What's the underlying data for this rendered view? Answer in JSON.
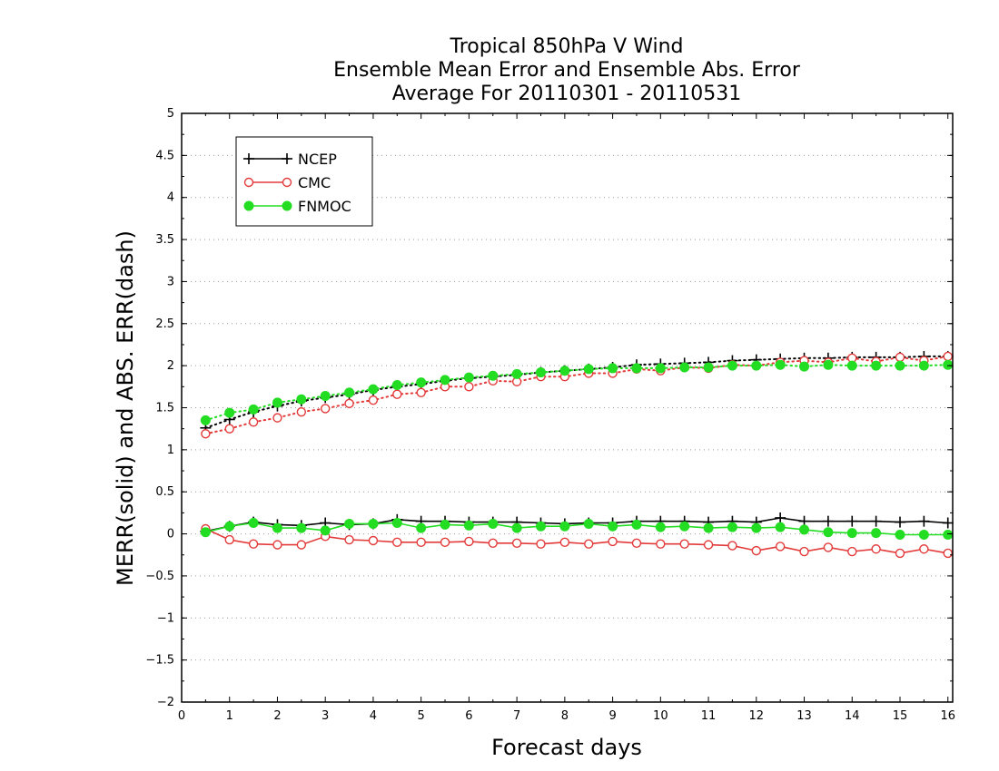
{
  "chart_data": {
    "type": "line",
    "title": [
      "Tropical 850hPa V Wind",
      "Ensemble Mean Error and Ensemble Abs. Error",
      "Average For 20110301 - 20110531"
    ],
    "xlabel": "Forecast days",
    "ylabel": "MERR(solid) and ABS. ERR(dash)",
    "xlim": [
      0,
      16.1
    ],
    "ylim": [
      -2,
      5
    ],
    "xticks": [
      0,
      1,
      2,
      3,
      4,
      5,
      6,
      7,
      8,
      9,
      10,
      11,
      12,
      13,
      14,
      15,
      16
    ],
    "xtick_labels": [
      "0",
      "1",
      "2",
      "3",
      "4",
      "5",
      "6",
      "7",
      "8",
      "9",
      "10",
      "11",
      "12",
      "13",
      "14",
      "15",
      "16"
    ],
    "yticks": [
      -2,
      -1.5,
      -1,
      -0.5,
      0,
      0.5,
      1,
      1.5,
      2,
      2.5,
      3,
      3.5,
      4,
      4.5,
      5
    ],
    "ytick_labels": [
      "−2",
      "−1.5",
      "−1",
      "−0.5",
      "0",
      "0.5",
      "1",
      "1.5",
      "2",
      "2.5",
      "3",
      "3.5",
      "4",
      "4.5",
      "5"
    ],
    "grid": "horizontal dotted",
    "legend_position": "top-left",
    "x": [
      0.5,
      1,
      1.5,
      2,
      2.5,
      3,
      3.5,
      4,
      4.5,
      5,
      5.5,
      6,
      6.5,
      7,
      7.5,
      8,
      8.5,
      9,
      9.5,
      10,
      10.5,
      11,
      11.5,
      12,
      12.5,
      13,
      13.5,
      14,
      14.5,
      15,
      15.5,
      16
    ],
    "series": [
      {
        "name": "NCEP",
        "color": "#000000",
        "marker": "plus",
        "merr": [
          0.03,
          0.09,
          0.14,
          0.11,
          0.1,
          0.13,
          0.11,
          0.12,
          0.17,
          0.15,
          0.15,
          0.14,
          0.14,
          0.14,
          0.13,
          0.12,
          0.13,
          0.13,
          0.15,
          0.15,
          0.15,
          0.14,
          0.15,
          0.14,
          0.19,
          0.15,
          0.15,
          0.15,
          0.15,
          0.14,
          0.15,
          0.13
        ],
        "abs_err": [
          1.26,
          1.36,
          1.45,
          1.52,
          1.58,
          1.62,
          1.66,
          1.71,
          1.75,
          1.78,
          1.82,
          1.85,
          1.87,
          1.89,
          1.92,
          1.94,
          1.96,
          1.98,
          2.01,
          2.02,
          2.03,
          2.04,
          2.06,
          2.07,
          2.08,
          2.09,
          2.09,
          2.1,
          2.1,
          2.1,
          2.11,
          2.11
        ]
      },
      {
        "name": "CMC",
        "color": "#e33a3a",
        "marker": "open-circle",
        "merr": [
          0.06,
          -0.07,
          -0.12,
          -0.13,
          -0.13,
          -0.03,
          -0.07,
          -0.08,
          -0.1,
          -0.1,
          -0.1,
          -0.09,
          -0.11,
          -0.11,
          -0.12,
          -0.1,
          -0.12,
          -0.09,
          -0.11,
          -0.12,
          -0.12,
          -0.13,
          -0.14,
          -0.2,
          -0.15,
          -0.21,
          -0.16,
          -0.21,
          -0.18,
          -0.23,
          -0.18,
          -0.23
        ],
        "abs_err": [
          1.19,
          1.25,
          1.33,
          1.38,
          1.45,
          1.49,
          1.55,
          1.59,
          1.66,
          1.68,
          1.75,
          1.75,
          1.82,
          1.81,
          1.87,
          1.87,
          1.91,
          1.91,
          1.96,
          1.94,
          1.98,
          1.97,
          2.01,
          2.0,
          2.04,
          2.06,
          2.04,
          2.09,
          2.05,
          2.1,
          2.06,
          2.11
        ]
      },
      {
        "name": "FNMOC",
        "color": "#22dd22",
        "marker": "filled-circle",
        "merr": [
          0.02,
          0.09,
          0.13,
          0.07,
          0.07,
          0.04,
          0.12,
          0.12,
          0.13,
          0.07,
          0.11,
          0.1,
          0.12,
          0.07,
          0.09,
          0.09,
          0.12,
          0.09,
          0.11,
          0.08,
          0.09,
          0.07,
          0.08,
          0.07,
          0.08,
          0.05,
          0.02,
          0.01,
          0.01,
          -0.01,
          -0.01,
          -0.01
        ],
        "abs_err": [
          1.35,
          1.44,
          1.48,
          1.56,
          1.6,
          1.64,
          1.68,
          1.72,
          1.77,
          1.8,
          1.83,
          1.86,
          1.88,
          1.9,
          1.92,
          1.94,
          1.96,
          1.97,
          1.97,
          1.97,
          1.98,
          1.98,
          2.0,
          2.0,
          2.01,
          1.99,
          2.01,
          2.0,
          2.0,
          2.0,
          2.0,
          2.01
        ]
      }
    ]
  }
}
